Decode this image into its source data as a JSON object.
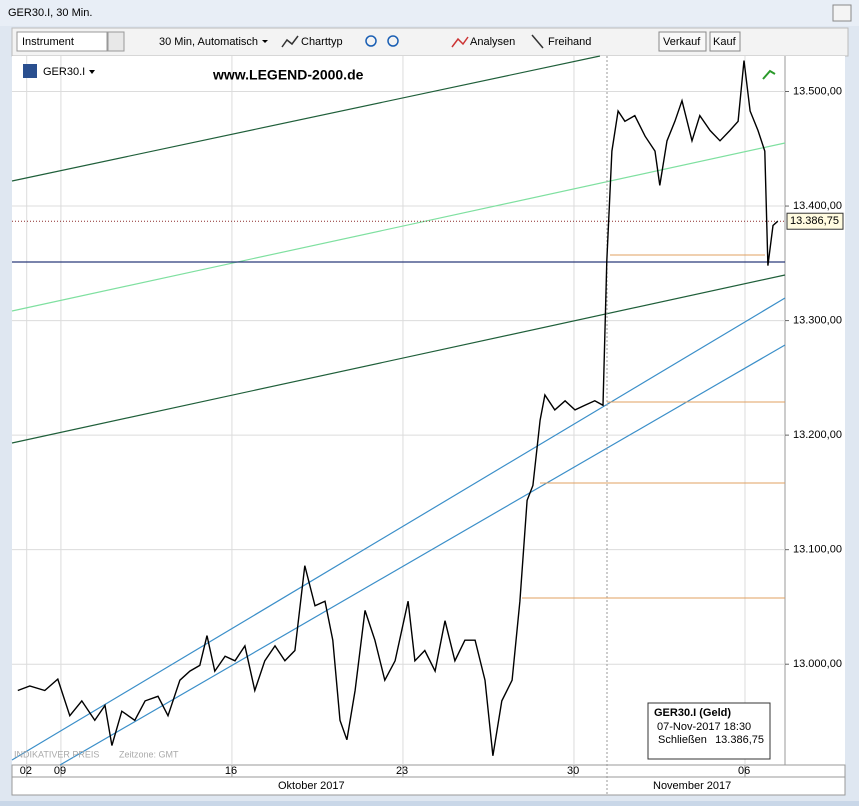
{
  "window": {
    "title": "GER30.I, 30 Min."
  },
  "toolbar": {
    "instrument": "Instrument",
    "interval": "30 Min, Automatisch",
    "charttype": "Charttyp",
    "analysen": "Analysen",
    "freihand": "Freihand",
    "sell": "Verkauf",
    "buy": "Kauf"
  },
  "chart_data": {
    "type": "line",
    "symbol": "GER30.I",
    "watermark": "www.LEGEND-2000.de",
    "series": [
      {
        "name": "GER30.I",
        "color": "#000000",
        "x": [
          -1.26,
          -0.91,
          -0.47,
          -0.09,
          0.26,
          0.61,
          0.99,
          1.29,
          1.49,
          1.78,
          2.16,
          2.46,
          2.84,
          3.13,
          3.48,
          3.77,
          4.06,
          4.27,
          4.5,
          4.8,
          5.09,
          5.38,
          5.67,
          5.96,
          6.26,
          6.55,
          6.84,
          7.13,
          7.43,
          7.72,
          7.95,
          8.16,
          8.36,
          8.6,
          8.89,
          9.18,
          9.47,
          9.77,
          10.15,
          10.35,
          10.64,
          10.94,
          11.23,
          11.52,
          11.81,
          12.11,
          12.4,
          12.63,
          12.89,
          13.19,
          13.42,
          13.63,
          13.8,
          14.01,
          14.15,
          14.44,
          14.74,
          15.03,
          15.32,
          15.61,
          15.85,
          15.96,
          16.11,
          16.29,
          16.49,
          16.78,
          17.08,
          17.37,
          17.51,
          17.72,
          17.95,
          18.16,
          18.45,
          18.68,
          18.98,
          19.27,
          19.56,
          19.8,
          19.97,
          20.15,
          20.38,
          20.58,
          20.67,
          20.82,
          20.96
        ],
        "values": [
          12977,
          12981,
          12977,
          12987,
          12955,
          12968,
          12951,
          12964,
          12929,
          12959,
          12951,
          12968,
          12972,
          12955,
          12986,
          12994,
          12999,
          13025,
          12994,
          13007,
          13003,
          13016,
          12977,
          13003,
          13016,
          13003,
          13012,
          13086,
          13051,
          13055,
          13021,
          12951,
          12934,
          12977,
          13047,
          13021,
          12986,
          13003,
          13055,
          13003,
          13012,
          12994,
          13038,
          13003,
          13021,
          13021,
          12986,
          12920,
          12968,
          12986,
          13055,
          13143,
          13156,
          13213,
          13235,
          13222,
          13230,
          13222,
          13226,
          13230,
          13226,
          13352,
          13448,
          13483,
          13474,
          13479,
          13461,
          13448,
          13418,
          13457,
          13474,
          13492,
          13457,
          13479,
          13466,
          13457,
          13466,
          13474,
          13527,
          13483,
          13466,
          13448,
          13348,
          13383,
          13386.75
        ]
      }
    ],
    "xlim": [
      -1.43,
      21.17
    ],
    "xticks": [
      {
        "value": -1,
        "label": "02"
      },
      {
        "value": 0,
        "label": "09"
      },
      {
        "value": 5,
        "label": "16"
      },
      {
        "value": 10,
        "label": "23"
      },
      {
        "value": 15,
        "label": "30"
      },
      {
        "value": 20,
        "label": "06"
      }
    ],
    "months": [
      "Oktober 2017",
      "November 2017"
    ],
    "ylim": [
      12912,
      13531
    ],
    "yticks": [
      {
        "value": 13000,
        "label": "13.000,00"
      },
      {
        "value": 13100,
        "label": "13.100,00"
      },
      {
        "value": 13200,
        "label": "13.200,00"
      },
      {
        "value": 13300,
        "label": "13.300,00"
      },
      {
        "value": 13400,
        "label": "13.400,00"
      },
      {
        "value": 13500,
        "label": "13.500,00"
      }
    ],
    "grid": true,
    "current_price": {
      "value": 13386.75,
      "label": "13.386,75"
    },
    "footer": {
      "price_note": "INDIKATIVER PREIS",
      "timezone": "Zeitzone: GMT"
    },
    "infobox": {
      "title": "GER30.I (Geld)",
      "datetime": "07-Nov-2017 18:30",
      "close_label": "Schließen"
    }
  }
}
